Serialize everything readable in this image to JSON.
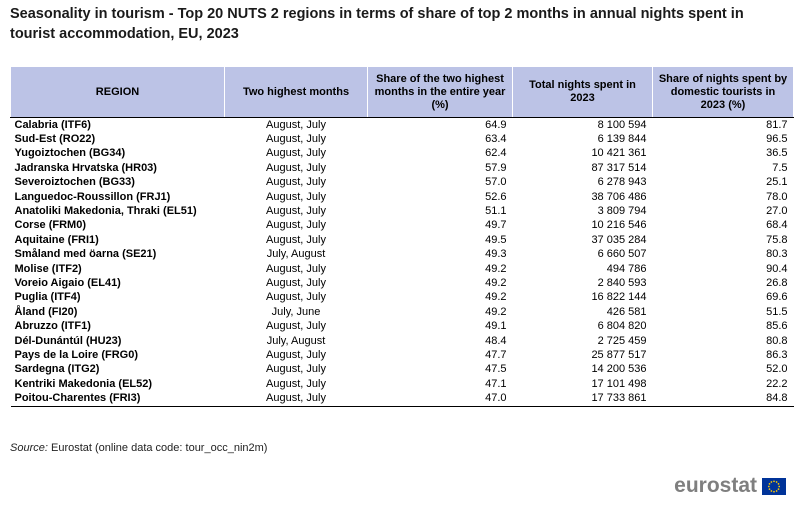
{
  "title": "Seasonality in tourism - Top 20 NUTS 2 regions in terms of share of top 2 months in annual nights spent in tourist accommodation, EU, 2023",
  "table": {
    "headers": [
      "REGION",
      "Two highest months",
      "Share of the two highest months in the entire year (%)",
      "Total nights spent in 2023",
      "Share of nights spent by domestic tourists in 2023 (%)"
    ],
    "rows": [
      [
        "Calabria (ITF6)",
        "August, July",
        "64.9",
        "8 100 594",
        "81.7"
      ],
      [
        "Sud-Est (RO22)",
        "August, July",
        "63.4",
        "6 139 844",
        "96.5"
      ],
      [
        "Yugoiztochen (BG34)",
        "August, July",
        "62.4",
        "10 421 361",
        "36.5"
      ],
      [
        "Jadranska Hrvatska (HR03)",
        "August, July",
        "57.9",
        "87 317 514",
        "7.5"
      ],
      [
        "Severoiztochen (BG33)",
        "August, July",
        "57.0",
        "6 278 943",
        "25.1"
      ],
      [
        "Languedoc-Roussillon (FRJ1)",
        "August, July",
        "52.6",
        "38 706 486",
        "78.0"
      ],
      [
        "Anatoliki Makedonia, Thraki (EL51)",
        "August, July",
        "51.1",
        "3 809 794",
        "27.0"
      ],
      [
        "Corse (FRM0)",
        "August, July",
        "49.7",
        "10 216 546",
        "68.4"
      ],
      [
        "Aquitaine (FRI1)",
        "August, July",
        "49.5",
        "37 035 284",
        "75.8"
      ],
      [
        "Småland med öarna (SE21)",
        "July, August",
        "49.3",
        "6 660 507",
        "80.3"
      ],
      [
        "Molise (ITF2)",
        "August, July",
        "49.2",
        "494 786",
        "90.4"
      ],
      [
        "Voreio Aigaio (EL41)",
        "August, July",
        "49.2",
        "2 840 593",
        "26.8"
      ],
      [
        "Puglia (ITF4)",
        "August, July",
        "49.2",
        "16 822 144",
        "69.6"
      ],
      [
        "Åland (FI20)",
        "July, June",
        "49.2",
        "426 581",
        "51.5"
      ],
      [
        "Abruzzo (ITF1)",
        "August, July",
        "49.1",
        "6 804 820",
        "85.6"
      ],
      [
        "Dél-Dunántúl (HU23)",
        "July, August",
        "48.4",
        "2 725 459",
        "80.8"
      ],
      [
        "Pays de la Loire (FRG0)",
        "August, July",
        "47.7",
        "25 877 517",
        "86.3"
      ],
      [
        "Sardegna (ITG2)",
        "August, July",
        "47.5",
        "14 200 536",
        "52.0"
      ],
      [
        "Kentriki Makedonia (EL52)",
        "August, July",
        "47.1",
        "17 101 498",
        "22.2"
      ],
      [
        "Poitou-Charentes (FRI3)",
        "August, July",
        "47.0",
        "17 733 861",
        "84.8"
      ]
    ]
  },
  "source": {
    "label": "Source:",
    "text": "Eurostat (online data code: tour_occ_nin2m)"
  },
  "brand": {
    "wordmark": "eurostat",
    "flag_icon": "eu-flag-icon",
    "flag_color": "#003399",
    "star_color": "#ffcc00"
  },
  "colors": {
    "header_bg": "#bcc3e6",
    "wordmark": "#7f7f7f"
  }
}
